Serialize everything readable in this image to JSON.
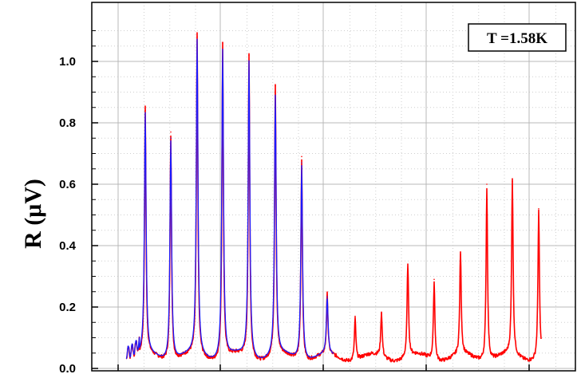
{
  "chart_data": {
    "type": "line",
    "title": "",
    "xlabel": "",
    "ylabel": "R (μV)",
    "ylim": [
      0.0,
      1.12
    ],
    "y_ticks": [
      0.0,
      0.2,
      0.4,
      0.6,
      0.8,
      1.0
    ],
    "y_tick_labels": [
      "0.0",
      "0.2",
      "0.4",
      "0.6",
      "0.8",
      "1.0"
    ],
    "x_tick_labels_visible": false,
    "grid": true,
    "annotation": "T =1.58K",
    "annotation_position": "top-right",
    "baseline": 0.035,
    "colors": {
      "red": "#ff0000",
      "blue": "#1a1aff"
    },
    "series": [
      {
        "color": "red",
        "peaks": [
          {
            "y": 0.84
          },
          {
            "y": 0.77
          },
          {
            "y": 1.08
          },
          {
            "y": 1.06
          },
          {
            "y": 1.02
          },
          {
            "y": 0.92
          },
          {
            "y": 0.69
          },
          {
            "y": 0.23
          },
          {
            "y": 0.17
          },
          {
            "y": 0.18
          },
          {
            "y": 0.34
          },
          {
            "y": 0.29
          },
          {
            "y": 0.37
          },
          {
            "y": 0.6
          },
          {
            "y": 0.61
          },
          {
            "y": 0.52
          }
        ]
      },
      {
        "color": "blue",
        "peaks": [
          {
            "y": 0.82
          },
          {
            "y": 0.75
          },
          {
            "y": 1.06
          },
          {
            "y": 1.04
          },
          {
            "y": 1.0
          },
          {
            "y": 0.88
          },
          {
            "y": 0.67
          },
          {
            "y": 0.22
          }
        ]
      }
    ]
  }
}
